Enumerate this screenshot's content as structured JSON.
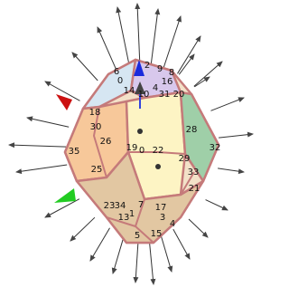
{
  "vertex_labels": [
    "0",
    "6",
    "2",
    "9",
    "8",
    "16",
    "14",
    "4",
    "10",
    "31",
    "20",
    "18",
    "30",
    "26",
    "19",
    "0",
    "22",
    "28",
    "32",
    "29",
    "35",
    "25",
    "33",
    "21",
    "23",
    "34",
    "13",
    "1",
    "7",
    "17",
    "3",
    "5",
    "15",
    "4"
  ]
}
